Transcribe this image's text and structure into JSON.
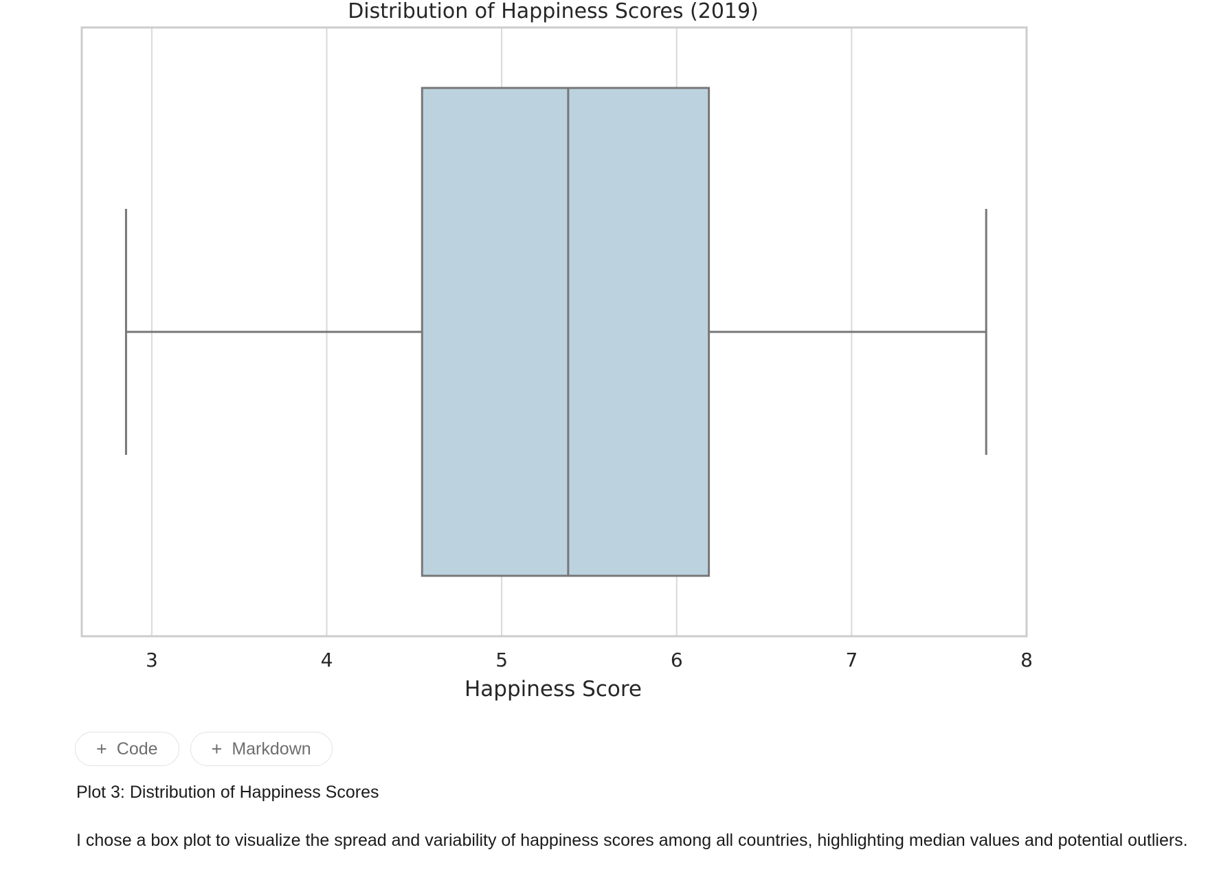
{
  "chart_data": {
    "type": "box",
    "title": "Distribution of Happiness Scores (2019)",
    "xlabel": "Happiness Score",
    "ylabel": "",
    "xlim": [
      2.6,
      8.0
    ],
    "xticks": [
      3,
      4,
      5,
      6,
      7,
      8
    ],
    "grid": true,
    "box": {
      "min": 2.853,
      "q1": 4.545,
      "median": 5.38,
      "q3": 6.184,
      "max": 7.769
    },
    "colors": {
      "box_fill": "#bcd3df",
      "line": "#777777",
      "grid": "#d9d9d9",
      "frame": "#cccccc"
    }
  },
  "toolbar": {
    "add_code_label": "Code",
    "add_markdown_label": "Markdown",
    "plus_glyph": "+"
  },
  "markdown_cell": {
    "heading": "Plot 3: Distribution of Happiness Scores",
    "paragraph": "I chose a box plot to visualize the spread and variability of happiness scores among all countries, highlighting median values and potential outliers."
  }
}
